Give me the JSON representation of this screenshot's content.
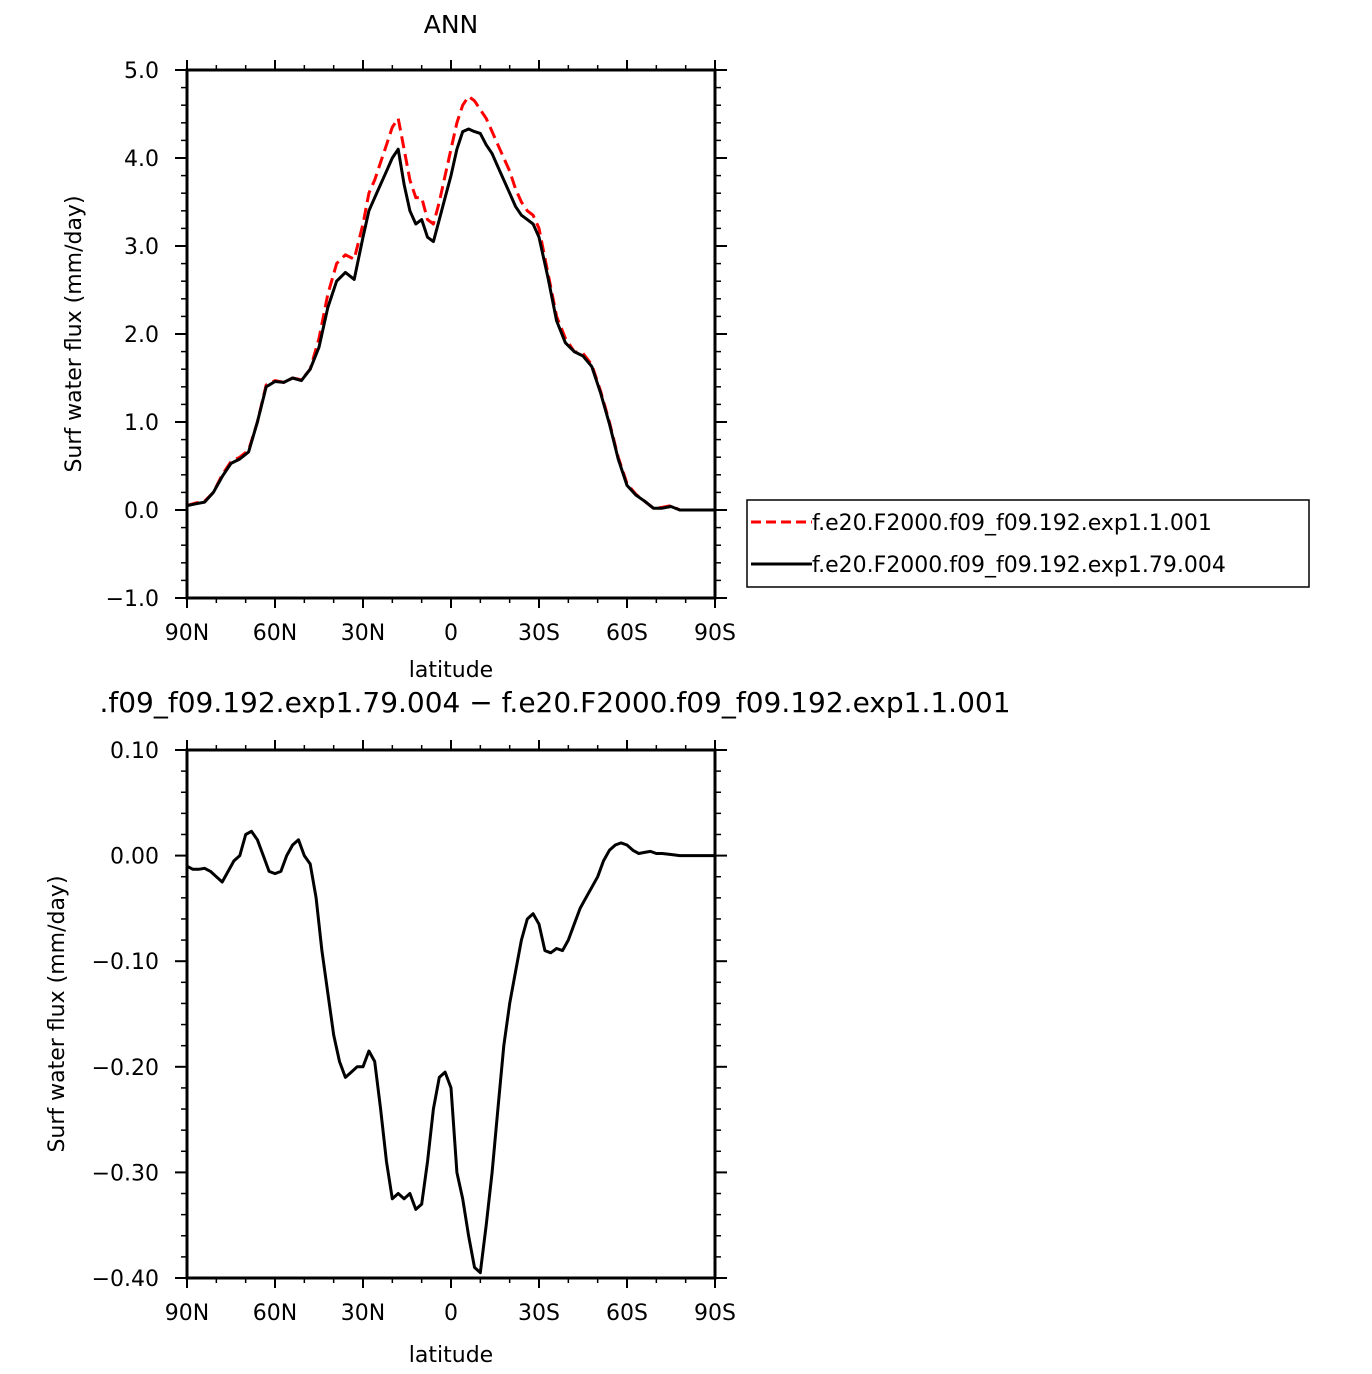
{
  "chart_data": [
    {
      "type": "line",
      "title": "ANN",
      "xlabel": "latitude",
      "ylabel": "Surf water flux (mm/day)",
      "xlim": [
        90,
        -90
      ],
      "ylim": [
        -1.0,
        5.0
      ],
      "x_ticks": [
        {
          "value": 90,
          "label": "90N"
        },
        {
          "value": 60,
          "label": "60N"
        },
        {
          "value": 30,
          "label": "30N"
        },
        {
          "value": 0,
          "label": "0"
        },
        {
          "value": -30,
          "label": "30S"
        },
        {
          "value": -60,
          "label": "60S"
        },
        {
          "value": -90,
          "label": "90S"
        }
      ],
      "y_ticks": [
        {
          "value": 5.0,
          "label": "5.0"
        },
        {
          "value": 4.0,
          "label": "4.0"
        },
        {
          "value": 3.0,
          "label": "3.0"
        },
        {
          "value": 2.0,
          "label": "2.0"
        },
        {
          "value": 1.0,
          "label": "1.0"
        },
        {
          "value": 0.0,
          "label": "0.0"
        },
        {
          "value": -1.0,
          "label": "−1.0"
        }
      ],
      "legend_position": "right",
      "series": [
        {
          "name": "f.e20.F2000.f09_f09.192.exp1.1.001",
          "color": "#ff0000",
          "dash": "dashed",
          "x": [
            90,
            87,
            84,
            81,
            78,
            75,
            72,
            69,
            66,
            63,
            60,
            57,
            54,
            51,
            48,
            45,
            42,
            39,
            36,
            33,
            30,
            28,
            26,
            24,
            22,
            20,
            18,
            16,
            14,
            12,
            10,
            8,
            6,
            4,
            2,
            0,
            -2,
            -4,
            -6,
            -8,
            -10,
            -12,
            -14,
            -16,
            -18,
            -20,
            -22,
            -24,
            -26,
            -28,
            -30,
            -33,
            -36,
            -39,
            -42,
            -45,
            -48,
            -51,
            -54,
            -57,
            -60,
            -63,
            -66,
            -69,
            -72,
            -75,
            -78,
            -81,
            -84,
            -87,
            -90
          ],
          "y": [
            0.05,
            0.08,
            0.1,
            0.2,
            0.4,
            0.55,
            0.6,
            0.68,
            1.0,
            1.42,
            1.47,
            1.45,
            1.5,
            1.48,
            1.6,
            1.95,
            2.45,
            2.8,
            2.9,
            2.85,
            3.25,
            3.6,
            3.75,
            3.95,
            4.15,
            4.35,
            4.45,
            4.1,
            3.75,
            3.55,
            3.55,
            3.3,
            3.25,
            3.5,
            3.8,
            4.1,
            4.4,
            4.6,
            4.7,
            4.65,
            4.55,
            4.45,
            4.3,
            4.15,
            4.0,
            3.85,
            3.65,
            3.5,
            3.4,
            3.35,
            3.2,
            2.7,
            2.2,
            1.95,
            1.8,
            1.78,
            1.65,
            1.35,
            1.0,
            0.6,
            0.3,
            0.18,
            0.1,
            0.02,
            0.03,
            0.05,
            0.0,
            0.0,
            0.0,
            0.0,
            0.0
          ]
        },
        {
          "name": "f.e20.F2000.f09_f09.192.exp1.79.004",
          "color": "#000000",
          "dash": "solid",
          "x": [
            90,
            87,
            84,
            81,
            78,
            75,
            72,
            69,
            66,
            63,
            60,
            57,
            54,
            51,
            48,
            45,
            42,
            39,
            36,
            33,
            30,
            28,
            26,
            24,
            22,
            20,
            18,
            16,
            14,
            12,
            10,
            8,
            6,
            4,
            2,
            0,
            -2,
            -4,
            -6,
            -8,
            -10,
            -12,
            -14,
            -16,
            -18,
            -20,
            -22,
            -24,
            -26,
            -28,
            -30,
            -33,
            -36,
            -39,
            -42,
            -45,
            -48,
            -51,
            -54,
            -57,
            -60,
            -63,
            -66,
            -69,
            -72,
            -75,
            -78,
            -81,
            -84,
            -87,
            -90
          ],
          "y": [
            0.05,
            0.07,
            0.09,
            0.2,
            0.38,
            0.53,
            0.58,
            0.66,
            1.0,
            1.4,
            1.46,
            1.45,
            1.5,
            1.47,
            1.6,
            1.85,
            2.3,
            2.6,
            2.7,
            2.62,
            3.1,
            3.4,
            3.55,
            3.7,
            3.85,
            4.0,
            4.1,
            3.7,
            3.4,
            3.25,
            3.3,
            3.1,
            3.05,
            3.3,
            3.55,
            3.8,
            4.1,
            4.3,
            4.33,
            4.3,
            4.28,
            4.15,
            4.05,
            3.9,
            3.75,
            3.6,
            3.45,
            3.35,
            3.3,
            3.25,
            3.1,
            2.65,
            2.15,
            1.9,
            1.8,
            1.75,
            1.63,
            1.33,
            0.98,
            0.58,
            0.28,
            0.17,
            0.1,
            0.02,
            0.02,
            0.04,
            0.0,
            0.0,
            0.0,
            0.0,
            0.0
          ]
        }
      ]
    },
    {
      "type": "line",
      "title": ".f09_f09.192.exp1.79.004 − f.e20.F2000.f09_f09.192.exp1.1.001",
      "xlabel": "latitude",
      "ylabel": "Surf water flux (mm/day)",
      "xlim": [
        90,
        -90
      ],
      "ylim": [
        -0.4,
        0.1
      ],
      "x_ticks": [
        {
          "value": 90,
          "label": "90N"
        },
        {
          "value": 60,
          "label": "60N"
        },
        {
          "value": 30,
          "label": "30N"
        },
        {
          "value": 0,
          "label": "0"
        },
        {
          "value": -30,
          "label": "30S"
        },
        {
          "value": -60,
          "label": "60S"
        },
        {
          "value": -90,
          "label": "90S"
        }
      ],
      "y_ticks": [
        {
          "value": 0.1,
          "label": "0.10"
        },
        {
          "value": 0.0,
          "label": "0.00"
        },
        {
          "value": -0.1,
          "label": "−0.10"
        },
        {
          "value": -0.2,
          "label": "−0.20"
        },
        {
          "value": -0.3,
          "label": "−0.30"
        },
        {
          "value": -0.4,
          "label": "−0.40"
        }
      ],
      "series": [
        {
          "color": "#000000",
          "dash": "solid",
          "x": [
            90,
            88,
            86,
            84,
            82,
            80,
            78,
            76,
            74,
            72,
            70,
            68,
            66,
            64,
            62,
            60,
            58,
            56,
            54,
            52,
            50,
            48,
            46,
            44,
            42,
            40,
            38,
            36,
            34,
            32,
            30,
            28,
            26,
            24,
            22,
            20,
            18,
            16,
            14,
            12,
            10,
            8,
            6,
            4,
            2,
            0,
            -2,
            -4,
            -6,
            -8,
            -10,
            -12,
            -14,
            -16,
            -18,
            -20,
            -22,
            -24,
            -26,
            -28,
            -30,
            -32,
            -34,
            -36,
            -38,
            -40,
            -42,
            -44,
            -46,
            -48,
            -50,
            -52,
            -54,
            -56,
            -58,
            -60,
            -62,
            -64,
            -66,
            -68,
            -70,
            -72,
            -75,
            -78,
            -81,
            -84,
            -87,
            -90
          ],
          "y": [
            -0.01,
            -0.013,
            -0.013,
            -0.012,
            -0.015,
            -0.02,
            -0.025,
            -0.015,
            -0.005,
            0.0,
            0.02,
            0.023,
            0.015,
            0.0,
            -0.015,
            -0.017,
            -0.015,
            0.0,
            0.01,
            0.015,
            0.0,
            -0.008,
            -0.04,
            -0.09,
            -0.13,
            -0.17,
            -0.195,
            -0.21,
            -0.205,
            -0.2,
            -0.2,
            -0.185,
            -0.195,
            -0.24,
            -0.29,
            -0.325,
            -0.32,
            -0.325,
            -0.32,
            -0.335,
            -0.33,
            -0.29,
            -0.24,
            -0.21,
            -0.205,
            -0.22,
            -0.3,
            -0.325,
            -0.36,
            -0.39,
            -0.395,
            -0.35,
            -0.3,
            -0.24,
            -0.18,
            -0.14,
            -0.11,
            -0.08,
            -0.06,
            -0.055,
            -0.065,
            -0.09,
            -0.092,
            -0.088,
            -0.09,
            -0.08,
            -0.065,
            -0.05,
            -0.04,
            -0.03,
            -0.02,
            -0.005,
            0.005,
            0.01,
            0.012,
            0.01,
            0.005,
            0.002,
            0.003,
            0.004,
            0.002,
            0.002,
            0.001,
            0.0,
            0.0,
            0.0,
            0.0,
            0.0
          ]
        }
      ]
    }
  ]
}
